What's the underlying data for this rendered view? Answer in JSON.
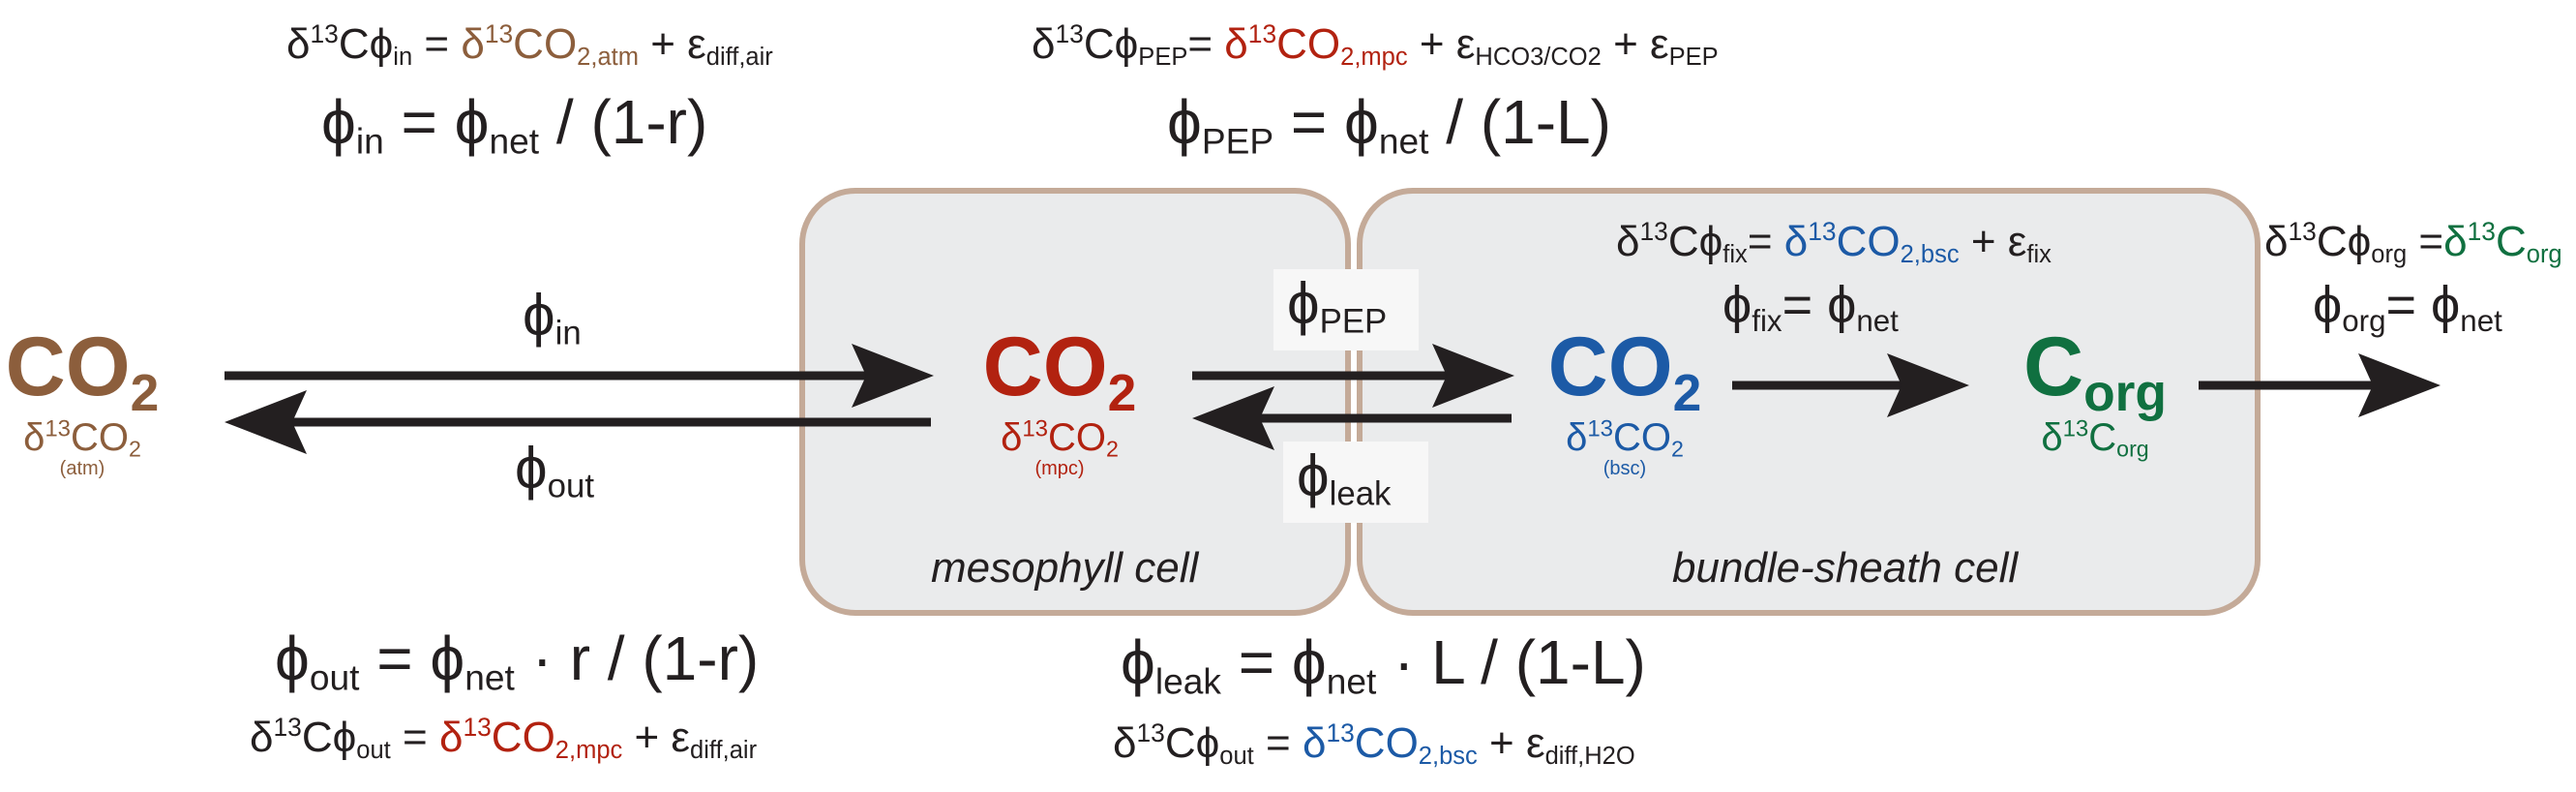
{
  "colors": {
    "atm": "#8c5e3c",
    "mpc": "#b22210",
    "bsc": "#1c5aa6",
    "org": "#107040",
    "cell_fill": "#eaebec",
    "cell_border": "#c4aa98",
    "text": "#231f20"
  },
  "pools": {
    "atm": {
      "main": "CO",
      "main_sub": "2",
      "iso_delta": "δ",
      "iso_sup": "13",
      "iso_main": "CO",
      "iso_sub": "2",
      "iso_note": "(atm)"
    },
    "mpc": {
      "main": "CO",
      "main_sub": "2",
      "iso_delta": "δ",
      "iso_sup": "13",
      "iso_main": "CO",
      "iso_sub": "2",
      "iso_note": "(mpc)"
    },
    "bsc": {
      "main": "CO",
      "main_sub": "2",
      "iso_delta": "δ",
      "iso_sup": "13",
      "iso_main": "CO",
      "iso_sub": "2",
      "iso_note": "(bsc)"
    },
    "org": {
      "main": "C",
      "main_sub": "org",
      "iso_delta": "δ",
      "iso_sup": "13",
      "iso_main": "C",
      "iso_sub": "org"
    }
  },
  "cells": {
    "mesophyll": "mesophyll cell",
    "bundle_sheath": "bundle-sheath cell"
  },
  "fluxes": {
    "in": {
      "sym": "ϕ",
      "sub": "in"
    },
    "out": {
      "sym": "ϕ",
      "sub": "out"
    },
    "pep": {
      "sym": "ϕ",
      "sub": "PEP"
    },
    "leak": {
      "sym": "ϕ",
      "sub": "leak"
    }
  },
  "equations": {
    "in_iso": {
      "d": "δ",
      "sup": "13",
      "c": "C",
      "phi": "ϕ",
      "phi_sub": "in",
      "eq": " = ",
      "rhs_d": "δ",
      "rhs_sup": "13",
      "rhs_main": "CO",
      "rhs_sub": "2,atm",
      "plus": " + ε",
      "eps_sub": "diff,air"
    },
    "in_flux": {
      "phi": "ϕ",
      "phi_sub": "in",
      "eq": " = ϕ",
      "net_sub": "net",
      "rest": " / (1-r)"
    },
    "pep_iso": {
      "d": "δ",
      "sup": "13",
      "c": "C",
      "phi": "ϕ",
      "phi_sub": "PEP",
      "eq": "= ",
      "rhs_d": "δ",
      "rhs_sup": "13",
      "rhs_main": "CO",
      "rhs_sub": "2,mpc",
      "plus1": " + ε",
      "eps1_sub": "HCO3/CO2",
      "plus2": " + ε",
      "eps2_sub": "PEP"
    },
    "pep_flux": {
      "phi": "ϕ",
      "phi_sub": "PEP",
      "eq": " = ϕ",
      "net_sub": "net",
      "rest": " / (1-L)"
    },
    "fix_iso": {
      "d": "δ",
      "sup": "13",
      "c": "C",
      "phi": "ϕ",
      "phi_sub": "fix",
      "eq": "= ",
      "rhs_d": "δ",
      "rhs_sup": "13",
      "rhs_main": "CO",
      "rhs_sub": "2,bsc",
      "plus": " + ε",
      "eps_sub": "fix"
    },
    "fix_flux": {
      "phi": "ϕ",
      "phi_sub": "fix",
      "eq": "= ϕ",
      "net_sub": "net"
    },
    "org_iso": {
      "d": "δ",
      "sup": "13",
      "c": "C",
      "phi": "ϕ",
      "phi_sub": "org",
      "eq": " =",
      "rhs_d": "δ",
      "rhs_sup": "13",
      "rhs_main": "C",
      "rhs_sub": "org"
    },
    "org_flux": {
      "phi": "ϕ",
      "phi_sub": "org",
      "eq": "= ϕ",
      "net_sub": "net"
    },
    "out_flux": {
      "phi": "ϕ",
      "phi_sub": "out",
      "eq": " = ϕ",
      "net_sub": "net",
      "rest": " · r / (1-r)"
    },
    "out_iso": {
      "d": "δ",
      "sup": "13",
      "c": "C",
      "phi": "ϕ",
      "phi_sub": "out",
      "eq": " = ",
      "rhs_d": "δ",
      "rhs_sup": "13",
      "rhs_main": "CO",
      "rhs_sub": "2,mpc",
      "plus": " + ε",
      "eps_sub": "diff,air"
    },
    "leak_flux": {
      "phi": "ϕ",
      "phi_sub": "leak",
      "eq": " = ϕ",
      "net_sub": "net",
      "rest": " · L / (1-L)"
    },
    "leak_iso": {
      "d": "δ",
      "sup": "13",
      "c": "C",
      "phi": "ϕ",
      "phi_sub": "out",
      "eq": " = ",
      "rhs_d": "δ",
      "rhs_sup": "13",
      "rhs_main": "CO",
      "rhs_sub": "2,bsc",
      "plus": " + ε",
      "eps_sub": "diff,H2O"
    }
  }
}
